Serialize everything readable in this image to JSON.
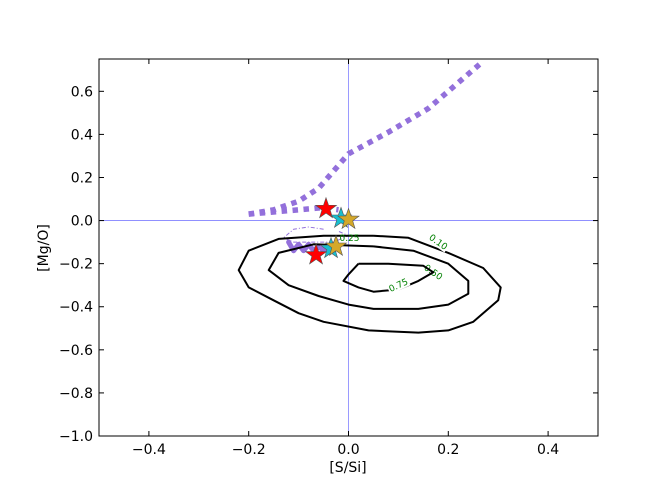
{
  "chart_data": {
    "type": "line",
    "title": "",
    "xlabel": "[S/Si]",
    "ylabel": "[Mg/O]",
    "xlim": [
      -0.5,
      0.5
    ],
    "ylim": [
      -1.0,
      0.75
    ],
    "xticks": [
      -0.4,
      -0.2,
      0.0,
      0.2,
      0.4
    ],
    "yticks": [
      -1.0,
      -0.8,
      -0.6,
      -0.4,
      -0.2,
      0.0,
      0.2,
      0.4,
      0.6
    ],
    "xtick_labels": [
      "−0.4",
      "−0.2",
      "0.0",
      "0.2",
      "0.4"
    ],
    "ytick_labels": [
      "−1.0",
      "−0.8",
      "−0.6",
      "−0.4",
      "−0.2",
      "0.0",
      "0.2",
      "0.4",
      "0.6"
    ],
    "reference_lines": {
      "x": 0.0,
      "y": 0.0,
      "color": "#8080ff"
    },
    "grid": false,
    "colors": {
      "contour": "#000000",
      "contour_label": "#008000",
      "track": "#9370db",
      "star_red": "#ff0000",
      "star_cyan": "#17becf",
      "star_gold": "#d4a82a"
    },
    "contours": [
      {
        "level_label": "0.10",
        "label_pos": [
          0.18,
          -0.1
        ],
        "points": [
          [
            0.05,
            -0.07
          ],
          [
            0.12,
            -0.08
          ],
          [
            0.2,
            -0.15
          ],
          [
            0.27,
            -0.22
          ],
          [
            0.305,
            -0.31
          ],
          [
            0.3,
            -0.37
          ],
          [
            0.25,
            -0.47
          ],
          [
            0.2,
            -0.51
          ],
          [
            0.14,
            -0.52
          ],
          [
            0.04,
            -0.51
          ],
          [
            -0.05,
            -0.47
          ],
          [
            -0.1,
            -0.43
          ],
          [
            -0.15,
            -0.37
          ],
          [
            -0.2,
            -0.31
          ],
          [
            -0.22,
            -0.23
          ],
          [
            -0.2,
            -0.14
          ],
          [
            -0.14,
            -0.085
          ],
          [
            -0.05,
            -0.07
          ],
          [
            0.05,
            -0.07
          ]
        ]
      },
      {
        "level_label": "0.50",
        "label_pos": [
          0.17,
          -0.24
        ],
        "points": [
          [
            0.05,
            -0.12
          ],
          [
            0.13,
            -0.14
          ],
          [
            0.2,
            -0.2
          ],
          [
            0.24,
            -0.28
          ],
          [
            0.24,
            -0.34
          ],
          [
            0.2,
            -0.39
          ],
          [
            0.14,
            -0.41
          ],
          [
            0.05,
            -0.41
          ],
          [
            0.0,
            -0.39
          ],
          [
            -0.06,
            -0.35
          ],
          [
            -0.12,
            -0.3
          ],
          [
            -0.16,
            -0.23
          ],
          [
            -0.14,
            -0.15
          ],
          [
            -0.07,
            -0.11
          ],
          [
            0.05,
            -0.12
          ]
        ]
      },
      {
        "level_label": "0.75",
        "label_pos": [
          0.1,
          -0.3
        ],
        "points": [
          [
            0.02,
            -0.2
          ],
          [
            0.08,
            -0.2
          ],
          [
            0.15,
            -0.21
          ],
          [
            0.17,
            -0.24
          ],
          [
            0.14,
            -0.28
          ],
          [
            0.1,
            -0.32
          ],
          [
            0.05,
            -0.33
          ],
          [
            0.02,
            -0.31
          ],
          [
            -0.01,
            -0.28
          ],
          [
            0.0,
            -0.25
          ],
          [
            0.02,
            -0.2
          ]
        ]
      }
    ],
    "inner_contour_label": {
      "text": "0.25",
      "x": 0.0,
      "y": -0.08
    },
    "tracks": [
      {
        "style": "dotted",
        "points": [
          [
            -0.2,
            0.03
          ],
          [
            -0.15,
            0.05
          ],
          [
            -0.1,
            0.09
          ],
          [
            -0.06,
            0.15
          ],
          [
            0.0,
            0.31
          ],
          [
            0.08,
            0.41
          ],
          [
            0.16,
            0.52
          ],
          [
            0.27,
            0.74
          ]
        ]
      },
      {
        "style": "dotted",
        "points": [
          [
            -0.2,
            0.03
          ],
          [
            -0.15,
            0.04
          ],
          [
            -0.1,
            0.05
          ],
          [
            -0.05,
            0.06
          ],
          [
            -0.02,
            0.05
          ]
        ]
      },
      {
        "style": "thin-dashdot",
        "points": [
          [
            -0.05,
            -0.04
          ],
          [
            -0.08,
            -0.03
          ],
          [
            -0.11,
            -0.04
          ],
          [
            -0.13,
            -0.08
          ],
          [
            -0.11,
            -0.1
          ],
          [
            -0.06,
            -0.1
          ],
          [
            -0.03,
            -0.1
          ],
          [
            0.0,
            -0.07
          ],
          [
            -0.02,
            -0.05
          ]
        ]
      },
      {
        "style": "thick",
        "points": [
          [
            -0.12,
            -0.1
          ],
          [
            -0.11,
            -0.14
          ],
          [
            -0.1,
            -0.11
          ],
          [
            -0.09,
            -0.14
          ],
          [
            -0.08,
            -0.11
          ],
          [
            -0.07,
            -0.14
          ],
          [
            -0.06,
            -0.12
          ],
          [
            -0.05,
            -0.14
          ],
          [
            -0.04,
            -0.12
          ],
          [
            -0.03,
            -0.11
          ]
        ]
      }
    ],
    "stars": [
      {
        "x": -0.045,
        "y": 0.055,
        "color": "red"
      },
      {
        "x": -0.015,
        "y": 0.01,
        "color": "cyan"
      },
      {
        "x": 0.0,
        "y": 0.005,
        "color": "gold"
      },
      {
        "x": -0.065,
        "y": -0.16,
        "color": "red"
      },
      {
        "x": -0.035,
        "y": -0.13,
        "color": "cyan"
      },
      {
        "x": -0.025,
        "y": -0.12,
        "color": "gold"
      }
    ]
  }
}
